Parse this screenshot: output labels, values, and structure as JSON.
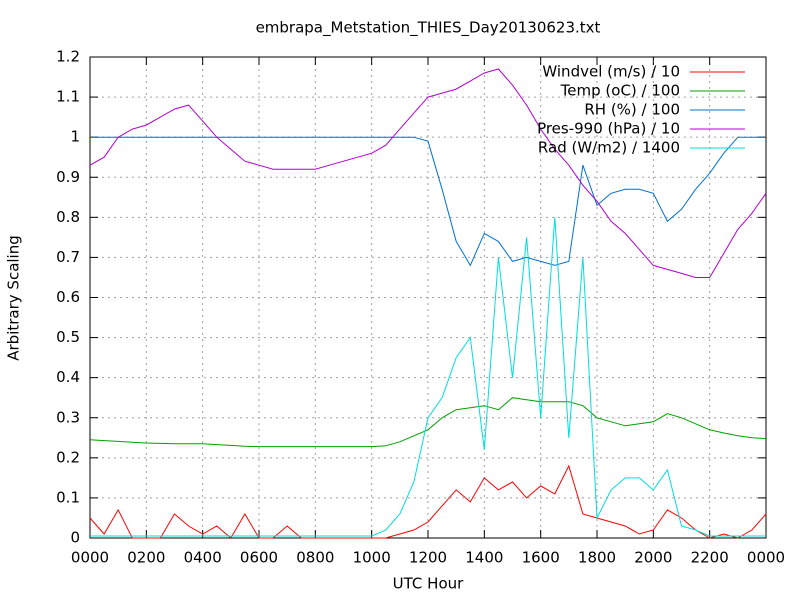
{
  "chart_data": {
    "type": "line",
    "title": "embrapa_Metstation_THIES_Day20130623.txt",
    "xlabel": "UTC Hour",
    "ylabel": "Arbitrary Scaling",
    "x": [
      0,
      0.5,
      1,
      1.5,
      2,
      2.5,
      3,
      3.5,
      4,
      4.5,
      5,
      5.5,
      6,
      6.5,
      7,
      7.5,
      8,
      8.5,
      9,
      9.5,
      10,
      10.5,
      11,
      11.5,
      12,
      12.5,
      13,
      13.5,
      14,
      14.5,
      15,
      15.5,
      16,
      16.5,
      17,
      17.5,
      18,
      18.5,
      19,
      19.5,
      20,
      20.5,
      21,
      21.5,
      22,
      22.5,
      23,
      23.5,
      24
    ],
    "xlim": [
      0,
      24
    ],
    "xticks": [
      {
        "value": 0,
        "label": "0000"
      },
      {
        "value": 2,
        "label": "0200"
      },
      {
        "value": 4,
        "label": "0400"
      },
      {
        "value": 6,
        "label": "0600"
      },
      {
        "value": 8,
        "label": "0800"
      },
      {
        "value": 10,
        "label": "1000"
      },
      {
        "value": 12,
        "label": "1200"
      },
      {
        "value": 14,
        "label": "1400"
      },
      {
        "value": 16,
        "label": "1600"
      },
      {
        "value": 18,
        "label": "1800"
      },
      {
        "value": 20,
        "label": "2000"
      },
      {
        "value": 22,
        "label": "2200"
      },
      {
        "value": 24,
        "label": "0000"
      }
    ],
    "ylim": [
      0,
      1.2
    ],
    "yticks": [
      0,
      0.1,
      0.2,
      0.3,
      0.4,
      0.5,
      0.6,
      0.7,
      0.8,
      0.9,
      1,
      1.1,
      1.2
    ],
    "grid": true,
    "legend": "upper right",
    "series": [
      {
        "name": "Windvel (m/s) / 10",
        "color": "#ff0000",
        "values": [
          0.05,
          0.01,
          0.07,
          0,
          0,
          0,
          0.06,
          0.03,
          0.01,
          0.03,
          0,
          0.06,
          0,
          0,
          0.03,
          0,
          0,
          0,
          0,
          0,
          0,
          0,
          0.01,
          0.02,
          0.04,
          0.08,
          0.12,
          0.09,
          0.15,
          0.12,
          0.14,
          0.1,
          0.13,
          0.11,
          0.18,
          0.06,
          0.05,
          0.04,
          0.03,
          0.01,
          0.02,
          0.07,
          0.05,
          0.02,
          0,
          0.01,
          0,
          0.02,
          0.06
        ]
      },
      {
        "name": "Temp (oC) / 100",
        "color": "#00a000",
        "values": [
          0.245,
          0.243,
          0.241,
          0.239,
          0.237,
          0.236,
          0.235,
          0.235,
          0.235,
          0.233,
          0.231,
          0.229,
          0.228,
          0.228,
          0.228,
          0.228,
          0.228,
          0.228,
          0.228,
          0.228,
          0.228,
          0.23,
          0.24,
          0.255,
          0.27,
          0.3,
          0.32,
          0.325,
          0.33,
          0.32,
          0.35,
          0.345,
          0.34,
          0.34,
          0.34,
          0.33,
          0.3,
          0.29,
          0.28,
          0.285,
          0.29,
          0.31,
          0.3,
          0.285,
          0.27,
          0.262,
          0.255,
          0.25,
          0.248
        ]
      },
      {
        "name": "RH (%) / 100",
        "color": "#0070d0",
        "values": [
          1,
          1,
          1,
          1,
          1,
          1,
          1,
          1,
          1,
          1,
          1,
          1,
          1,
          1,
          1,
          1,
          1,
          1,
          1,
          1,
          1,
          1,
          1,
          1,
          0.99,
          0.87,
          0.74,
          0.68,
          0.76,
          0.74,
          0.69,
          0.7,
          0.69,
          0.68,
          0.69,
          0.93,
          0.83,
          0.86,
          0.87,
          0.87,
          0.86,
          0.79,
          0.82,
          0.87,
          0.91,
          0.96,
          1,
          1,
          1
        ]
      },
      {
        "name": "Pres-990 (hPa) / 10",
        "color": "#b000d0",
        "values": [
          0.93,
          0.95,
          1,
          1.02,
          1.03,
          1.05,
          1.07,
          1.08,
          1.04,
          1,
          0.97,
          0.94,
          0.93,
          0.92,
          0.92,
          0.92,
          0.92,
          0.93,
          0.94,
          0.95,
          0.96,
          0.98,
          1.02,
          1.06,
          1.1,
          1.11,
          1.12,
          1.14,
          1.16,
          1.17,
          1.13,
          1.08,
          1.02,
          0.97,
          0.93,
          0.88,
          0.84,
          0.79,
          0.76,
          0.72,
          0.68,
          0.67,
          0.66,
          0.65,
          0.65,
          0.71,
          0.77,
          0.81,
          0.86
        ]
      },
      {
        "name": "Rad (W/m2) / 1400",
        "color": "#00dddd",
        "values": [
          0.005,
          0.005,
          0.005,
          0.005,
          0.005,
          0.005,
          0.005,
          0.005,
          0.005,
          0.005,
          0.005,
          0.005,
          0.005,
          0.005,
          0.005,
          0.005,
          0.005,
          0.005,
          0.005,
          0.005,
          0.005,
          0.02,
          0.06,
          0.14,
          0.3,
          0.35,
          0.45,
          0.5,
          0.22,
          0.7,
          0.4,
          0.75,
          0.3,
          0.8,
          0.25,
          0.7,
          0.05,
          0.12,
          0.15,
          0.15,
          0.12,
          0.17,
          0.03,
          0.02,
          0.005,
          0.005,
          0.005,
          0.005,
          0.005
        ]
      }
    ]
  }
}
